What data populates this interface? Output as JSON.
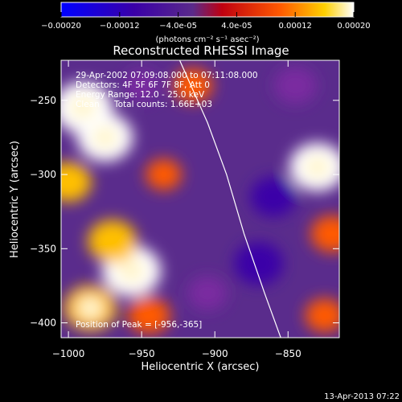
{
  "colorbar": {
    "ticks": [
      "-0.00020",
      "-0.00012",
      "-4.0e-05",
      "4.0e-05",
      "0.00012",
      "0.00020"
    ],
    "tick_values": [
      -0.0002,
      -0.00012,
      -4e-05,
      4e-05,
      0.00012,
      0.0002
    ],
    "range": [
      -0.0002,
      0.0002
    ],
    "unit_label": "(photons cm⁻² s⁻¹ asec⁻²)"
  },
  "chart_data": {
    "type": "heatmap",
    "title": "Reconstructed RHESSI Image",
    "xlabel": "Heliocentric X (arcsec)",
    "ylabel": "Heliocentric Y (arcsec)",
    "xlim": [
      -1005,
      -815
    ],
    "ylim": [
      -410,
      -223
    ],
    "x_ticks": [
      -1000,
      -950,
      -900,
      -850
    ],
    "y_ticks": [
      -250,
      -300,
      -350,
      -400
    ],
    "value_range": [
      -0.0002,
      0.0002
    ],
    "colormap": [
      "#0000ff",
      "#3a00a8",
      "#7a2aa0",
      "#5a2a8a",
      "#d10000",
      "#ff5a00",
      "#ffbf00",
      "#ffffff"
    ],
    "blobs": [
      {
        "x": -990,
        "y": -255,
        "value": 0.0002
      },
      {
        "x": -975,
        "y": -275,
        "value": 0.00018
      },
      {
        "x": -1000,
        "y": -305,
        "value": 0.00012
      },
      {
        "x": -957,
        "y": -365,
        "value": 0.0002
      },
      {
        "x": -970,
        "y": -345,
        "value": 0.00014
      },
      {
        "x": -985,
        "y": -390,
        "value": 0.00016
      },
      {
        "x": -945,
        "y": -395,
        "value": 0.0001
      },
      {
        "x": -915,
        "y": -240,
        "value": 8e-05
      },
      {
        "x": -935,
        "y": -300,
        "value": 6e-05
      },
      {
        "x": -830,
        "y": -295,
        "value": 0.00018
      },
      {
        "x": -820,
        "y": -340,
        "value": 0.0001
      },
      {
        "x": -825,
        "y": -395,
        "value": 8e-05
      },
      {
        "x": -860,
        "y": -315,
        "value": -0.00012
      },
      {
        "x": -870,
        "y": -360,
        "value": -0.00014
      },
      {
        "x": -845,
        "y": -240,
        "value": -0.0001
      },
      {
        "x": -905,
        "y": -380,
        "value": -8e-05
      },
      {
        "x": -950,
        "y": -240,
        "value": -6e-05
      }
    ],
    "limb": [
      {
        "x": -924,
        "y": -223
      },
      {
        "x": -905,
        "y": -265
      },
      {
        "x": -892,
        "y": -300
      },
      {
        "x": -880,
        "y": -340
      },
      {
        "x": -866,
        "y": -380
      },
      {
        "x": -855,
        "y": -410
      }
    ],
    "annotations": {
      "line1": "29-Apr-2002 07:09:08.000 to 07:11:08.000",
      "line2": "Detectors: 4F 5F 6F 7F 8F, Att 0",
      "line3": "Energy Range: 12.0 - 25.0 keV",
      "line4a": "Clean",
      "line4b": "Total counts: 1.66E+03",
      "peak": "Position of Peak = [-956,-365]"
    }
  },
  "footer": {
    "timestamp": "13-Apr-2013 07:22"
  }
}
